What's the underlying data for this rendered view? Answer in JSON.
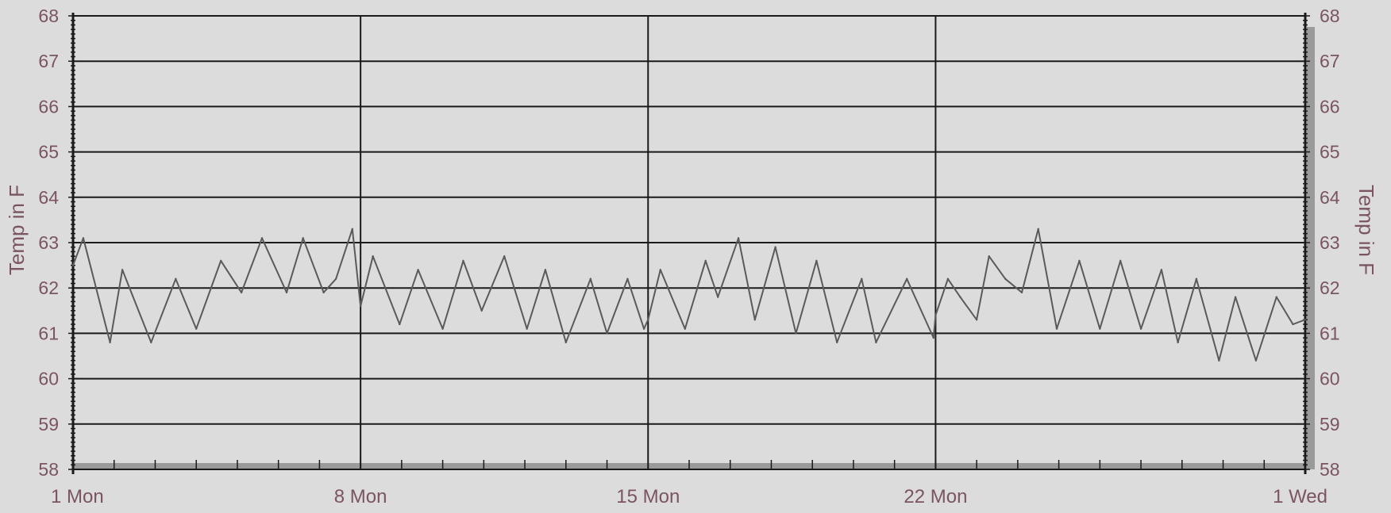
{
  "chart_data": {
    "type": "line",
    "ylabel_left": "Temp in F",
    "ylabel_right": "Temp in F",
    "ylim": [
      58,
      68
    ],
    "y_ticks": [
      "58",
      "59",
      "60",
      "61",
      "62",
      "63",
      "64",
      "65",
      "66",
      "67",
      "68"
    ],
    "x_range_days": [
      0,
      30
    ],
    "x_ticks": [
      {
        "day": 0,
        "label": "1 Mon"
      },
      {
        "day": 7,
        "label": "8 Mon"
      },
      {
        "day": 14,
        "label": "15 Mon"
      },
      {
        "day": 21,
        "label": "22 Mon"
      },
      {
        "day": 30,
        "label": "1 Wed"
      }
    ],
    "grid": true,
    "colors": {
      "background": "#dcdcdc",
      "grid": "#1a1a1a",
      "axis_text": "#7a5560",
      "series": "#5a5a5a",
      "bottom_band": "#9a9a9a"
    },
    "series": [
      {
        "x": [
          0,
          0.25,
          0.9,
          1.2,
          1.9,
          2.5,
          3.0,
          3.6,
          4.1,
          4.6,
          5.2,
          5.6,
          6.1,
          6.4,
          6.8,
          7.0,
          7.3,
          7.95,
          8.4,
          9.0,
          9.5,
          9.95,
          10.5,
          11.05,
          11.5,
          12.0,
          12.6,
          13.0,
          13.5,
          13.9,
          14.0,
          14.3,
          14.9,
          15.4,
          15.7,
          16.2,
          16.6,
          17.1,
          17.6,
          18.1,
          18.6,
          19.2,
          19.55,
          20.3,
          20.95,
          21.0,
          21.3,
          21.6,
          22.0,
          22.3,
          22.7,
          23.1,
          23.5,
          23.95,
          24.5,
          25.0,
          25.5,
          26.0,
          26.5,
          26.9,
          27.35,
          27.9,
          28.3,
          28.8,
          29.3,
          29.7,
          30.0
        ],
        "y": [
          62.5,
          63.1,
          60.8,
          62.4,
          60.8,
          62.2,
          61.1,
          62.6,
          61.9,
          63.1,
          61.9,
          63.1,
          61.9,
          62.2,
          63.3,
          61.6,
          62.7,
          61.2,
          62.4,
          61.1,
          62.6,
          61.5,
          62.7,
          61.1,
          62.4,
          60.8,
          62.2,
          61.0,
          62.2,
          61.1,
          61.3,
          62.4,
          61.1,
          62.6,
          61.8,
          63.1,
          61.3,
          62.9,
          61.0,
          62.6,
          60.8,
          62.2,
          60.8,
          62.2,
          60.9,
          61.4,
          62.2,
          61.8,
          61.3,
          62.7,
          62.2,
          61.9,
          63.3,
          61.1,
          62.6,
          61.1,
          62.6,
          61.1,
          62.4,
          60.8,
          62.2,
          60.4,
          61.8,
          60.4,
          61.8,
          61.2,
          61.3
        ]
      }
    ]
  }
}
